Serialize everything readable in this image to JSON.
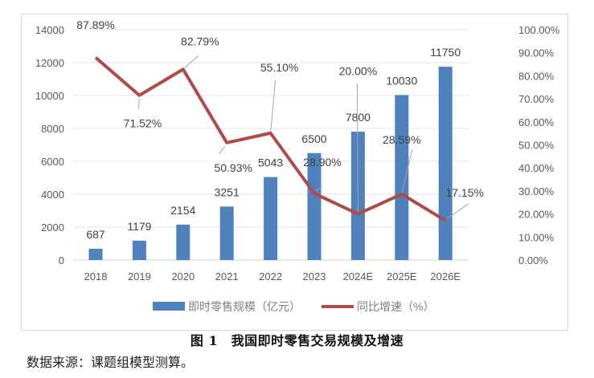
{
  "chart_data": {
    "type": "bar+line",
    "title": "",
    "categories": [
      "2018",
      "2019",
      "2020",
      "2021",
      "2022",
      "2023",
      "2024E",
      "2025E",
      "2026E"
    ],
    "series": [
      {
        "name": "即时零售规模（亿元）",
        "type": "bar",
        "axis": "left",
        "color": "#4f81bd",
        "values": [
          687,
          1179,
          2154,
          3251,
          5043,
          6500,
          7800,
          10030,
          11750
        ],
        "labels": [
          "687",
          "1179",
          "2154",
          "3251",
          "5043",
          "6500",
          "7800",
          "10030",
          "11750"
        ]
      },
      {
        "name": "同比增速（%）",
        "type": "line",
        "axis": "right",
        "color": "#b04a4a",
        "values": [
          87.89,
          71.52,
          82.79,
          50.93,
          55.1,
          28.9,
          20.0,
          28.59,
          17.15
        ],
        "labels": [
          "87.89%",
          "71.52%",
          "82.79%",
          "50.93%",
          "55.10%",
          "28.90%",
          "20.00%",
          "28.59%",
          "17.15%"
        ]
      }
    ],
    "left_axis": {
      "min": 0,
      "max": 14000,
      "step": 2000,
      "ticks": [
        "0",
        "2000",
        "4000",
        "6000",
        "8000",
        "10000",
        "12000",
        "14000"
      ]
    },
    "right_axis": {
      "min": 0,
      "max": 100,
      "step": 10,
      "ticks": [
        "0.00%",
        "10.00%",
        "20.00%",
        "30.00%",
        "40.00%",
        "50.00%",
        "60.00%",
        "70.00%",
        "80.00%",
        "90.00%",
        "100.00%"
      ]
    },
    "xlabel": "",
    "ylabel": "",
    "grid": true,
    "legend_position": "bottom"
  },
  "legend": {
    "bar_label": "即时零售规模（亿元）",
    "line_label": "同比增速（%）"
  },
  "caption": "图 1　我国即时零售交易规模及增速",
  "source": "数据来源：课题组模型测算。"
}
